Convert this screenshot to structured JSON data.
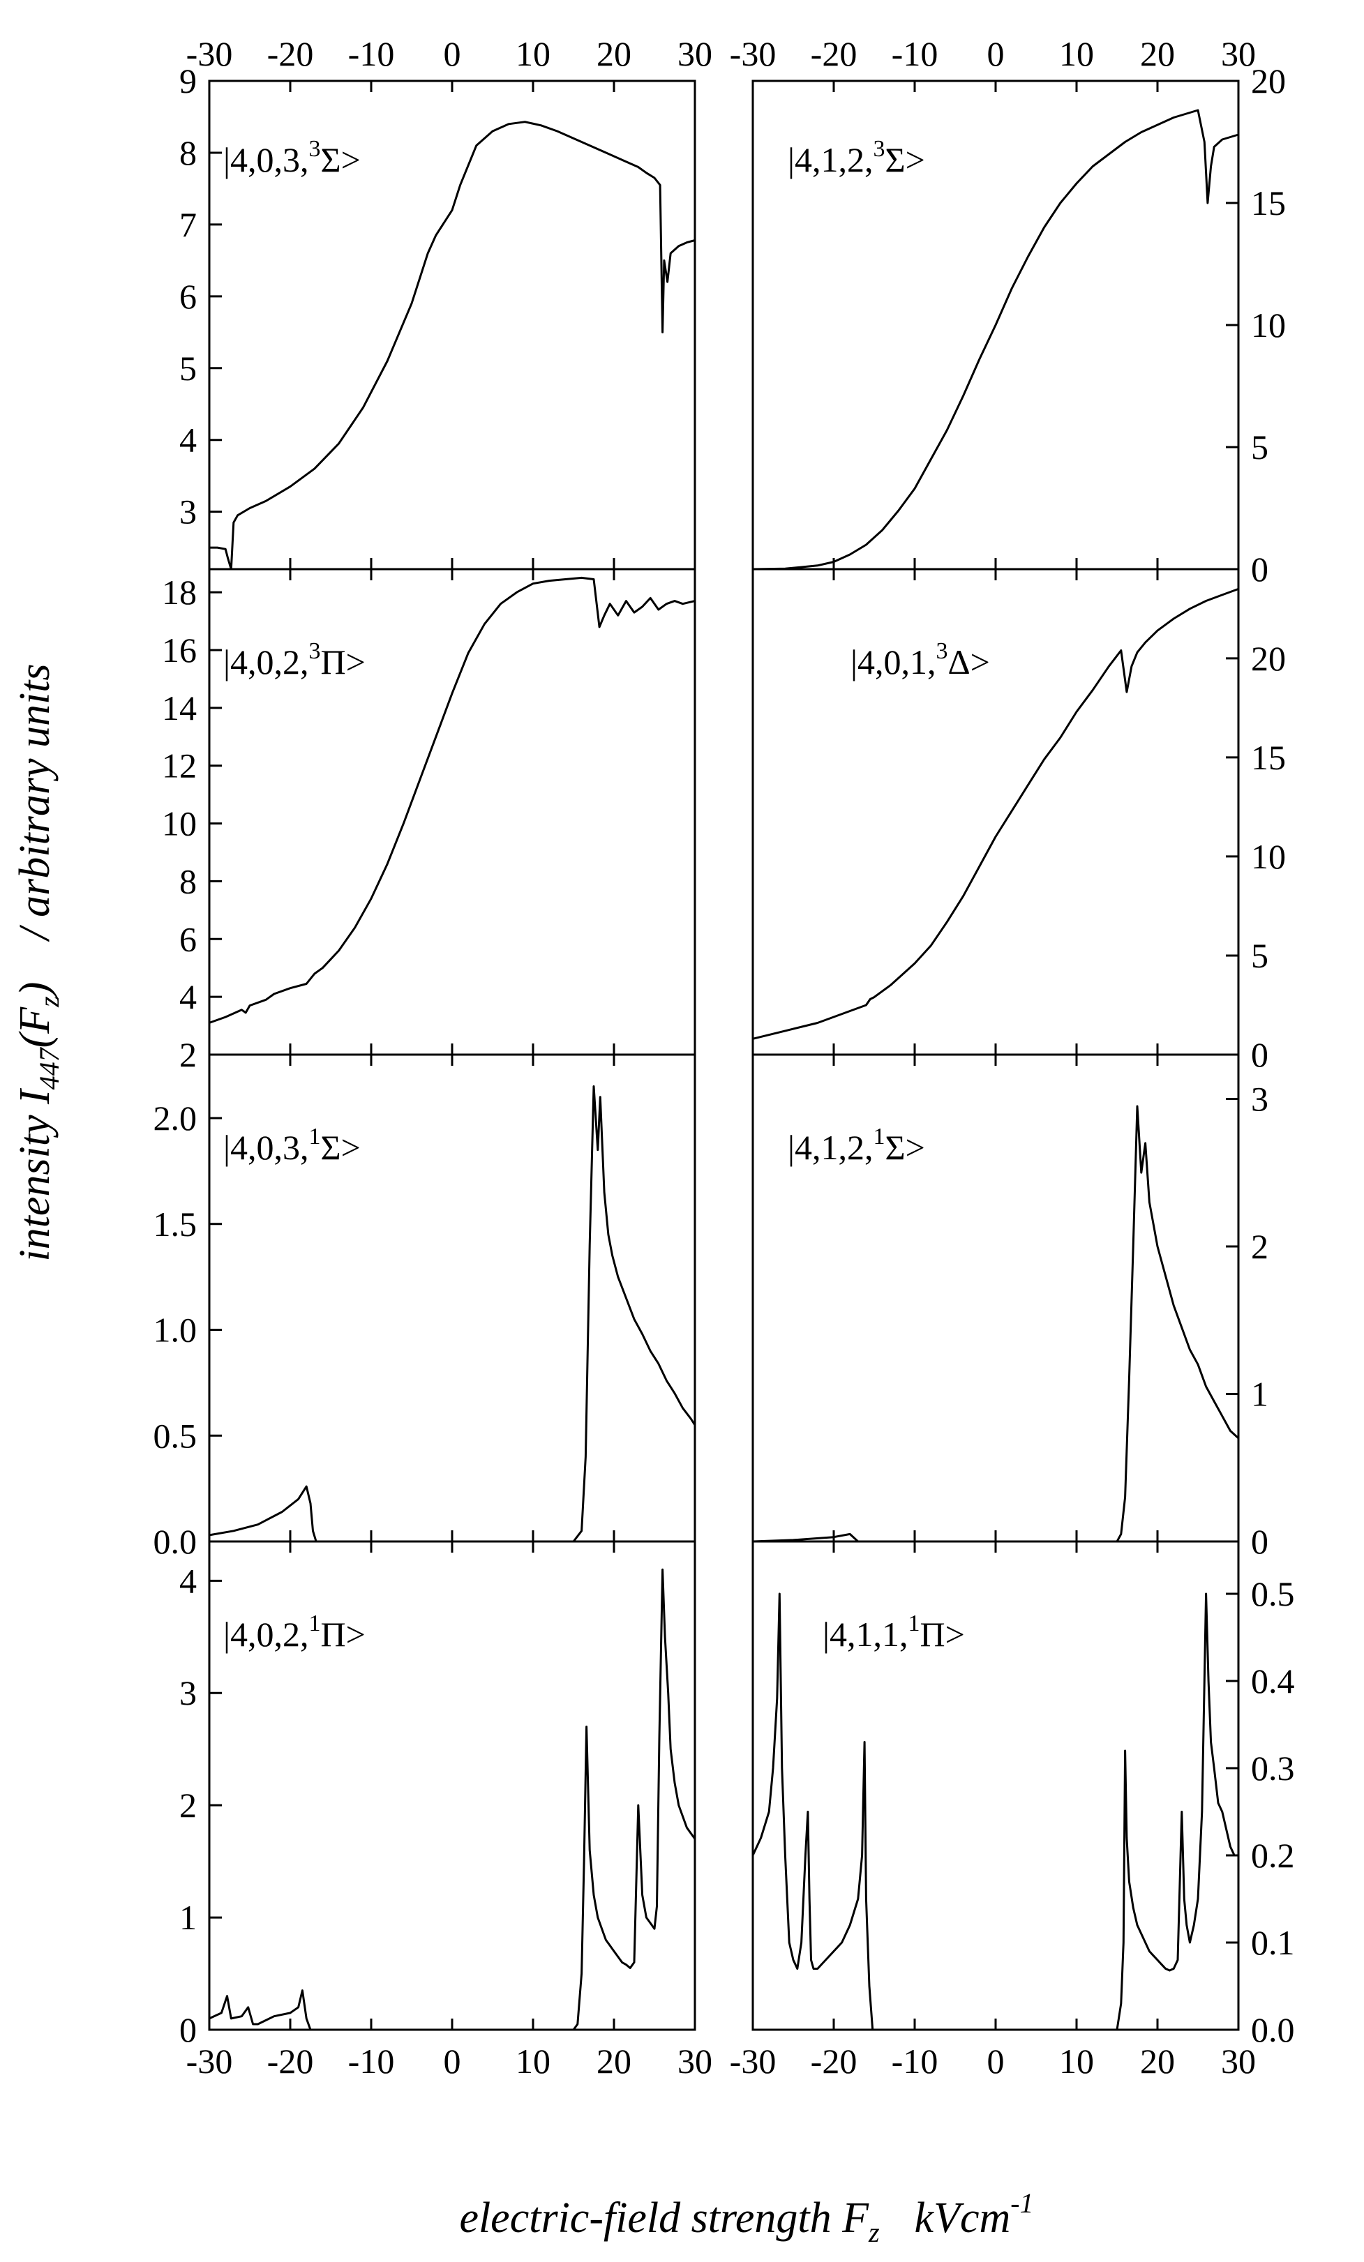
{
  "chart_data": [
    {
      "type": "line",
      "panel": "top-left",
      "label": {
        "prefix": "|4,0,3,",
        "sup": "3",
        "term": "Σ>"
      },
      "xlim": [
        -30,
        30
      ],
      "ylim": [
        2.2,
        9
      ],
      "yticks": [
        "3",
        "4",
        "5",
        "6",
        "7",
        "8",
        "9"
      ],
      "ytick_values": [
        3,
        4,
        5,
        6,
        7,
        8,
        9
      ],
      "series": [
        {
          "name": "|4,0,3,3Σ>",
          "x": [
            -30,
            -29,
            -28,
            -27.7,
            -27.3,
            -27,
            -26.5,
            -25,
            -23,
            -20,
            -17,
            -14,
            -11,
            -8,
            -5,
            -3,
            -2,
            0,
            1,
            3,
            5,
            7,
            9,
            11,
            13,
            15,
            17,
            19,
            21,
            23,
            24,
            25,
            25.7,
            26,
            26.2,
            26.6,
            27,
            28,
            29,
            30
          ],
          "y": [
            2.5,
            2.5,
            2.48,
            2.35,
            2.2,
            2.85,
            2.95,
            3.05,
            3.15,
            3.35,
            3.6,
            3.95,
            4.45,
            5.1,
            5.9,
            6.6,
            6.85,
            7.2,
            7.55,
            8.1,
            8.3,
            8.4,
            8.43,
            8.38,
            8.3,
            8.2,
            8.1,
            8.0,
            7.9,
            7.8,
            7.72,
            7.65,
            7.55,
            5.5,
            6.5,
            6.2,
            6.6,
            6.7,
            6.75,
            6.78
          ]
        }
      ]
    },
    {
      "type": "line",
      "panel": "top-right",
      "label": {
        "prefix": "|4,1,2,",
        "sup": "3",
        "term": "Σ>"
      },
      "xlim": [
        -30,
        30
      ],
      "ylim": [
        0,
        20
      ],
      "yticks": [
        "0",
        "5",
        "10",
        "15",
        "20"
      ],
      "ytick_values": [
        0,
        5,
        10,
        15,
        20
      ],
      "series": [
        {
          "name": "|4,1,2,3Σ>",
          "x": [
            -30,
            -26,
            -22,
            -20,
            -18,
            -16,
            -14,
            -12,
            -10,
            -8,
            -6,
            -4,
            -2,
            0,
            2,
            4,
            6,
            8,
            10,
            12,
            14,
            16,
            18,
            20,
            22,
            24,
            25,
            25.8,
            26.2,
            26.6,
            27,
            28,
            29,
            30
          ],
          "y": [
            0,
            0.02,
            0.15,
            0.3,
            0.6,
            1.0,
            1.6,
            2.4,
            3.3,
            4.5,
            5.7,
            7.1,
            8.6,
            10.0,
            11.5,
            12.8,
            14.0,
            15.0,
            15.8,
            16.5,
            17.0,
            17.5,
            17.9,
            18.2,
            18.5,
            18.7,
            18.8,
            17.5,
            15.0,
            16.5,
            17.3,
            17.6,
            17.7,
            17.8
          ]
        }
      ]
    },
    {
      "type": "line",
      "panel": "second-left",
      "label": {
        "prefix": "|4,0,2,",
        "sup": "3",
        "term": "Π>"
      },
      "xlim": [
        -30,
        30
      ],
      "ylim": [
        2,
        18.8
      ],
      "yticks": [
        "2",
        "4",
        "6",
        "8",
        "10",
        "12",
        "14",
        "16",
        "18"
      ],
      "ytick_values": [
        2,
        4,
        6,
        8,
        10,
        12,
        14,
        16,
        18
      ],
      "series": [
        {
          "name": "|4,0,2,3Π>",
          "x": [
            -30,
            -28,
            -26,
            -25.5,
            -25,
            -23,
            -22,
            -20,
            -18,
            -17,
            -16,
            -14,
            -12,
            -10,
            -8,
            -6,
            -4,
            -2,
            0,
            2,
            4,
            6,
            8,
            10,
            12,
            14,
            16,
            17.5,
            18.2,
            18.8,
            19.5,
            20.5,
            21.5,
            22.5,
            23.5,
            24.5,
            25.5,
            26.5,
            27.5,
            28.5,
            30
          ],
          "y": [
            3.1,
            3.3,
            3.55,
            3.45,
            3.7,
            3.9,
            4.1,
            4.3,
            4.45,
            4.8,
            5.0,
            5.6,
            6.4,
            7.4,
            8.6,
            10.0,
            11.5,
            13.0,
            14.5,
            15.9,
            16.9,
            17.6,
            18.0,
            18.3,
            18.4,
            18.45,
            18.5,
            18.45,
            16.8,
            17.2,
            17.6,
            17.2,
            17.7,
            17.3,
            17.5,
            17.8,
            17.4,
            17.6,
            17.7,
            17.6,
            17.7
          ]
        }
      ]
    },
    {
      "type": "line",
      "panel": "second-right",
      "label": {
        "prefix": "|4,0,1,",
        "sup": "3",
        "term": "Δ>"
      },
      "xlim": [
        -30,
        30
      ],
      "ylim": [
        0,
        24.5
      ],
      "yticks": [
        "0",
        "5",
        "10",
        "15",
        "20"
      ],
      "ytick_values": [
        0,
        5,
        10,
        15,
        20
      ],
      "series": [
        {
          "name": "|4,0,1,3Δ>",
          "x": [
            -30,
            -26,
            -22,
            -18,
            -16,
            -15.5,
            -15,
            -13,
            -10,
            -8,
            -6,
            -4,
            -2,
            0,
            2,
            4,
            6,
            8,
            10,
            12,
            14,
            15.5,
            16.2,
            16.8,
            17.5,
            18.5,
            20,
            22,
            24,
            26,
            28,
            30
          ],
          "y": [
            0.8,
            1.2,
            1.6,
            2.2,
            2.5,
            2.8,
            2.9,
            3.5,
            4.6,
            5.5,
            6.7,
            8.0,
            9.5,
            11.0,
            12.3,
            13.6,
            14.9,
            16.0,
            17.3,
            18.4,
            19.6,
            20.4,
            18.3,
            19.6,
            20.3,
            20.8,
            21.4,
            22.0,
            22.5,
            22.9,
            23.2,
            23.5
          ]
        }
      ]
    },
    {
      "type": "line",
      "panel": "third-left",
      "label": {
        "prefix": "|4,0,3,",
        "sup": "1",
        "term": "Σ>"
      },
      "xlim": [
        -30,
        30
      ],
      "ylim": [
        0,
        2.3
      ],
      "yticks": [
        "0.0",
        "0.5",
        "1.0",
        "1.5",
        "2.0"
      ],
      "ytick_values": [
        0,
        0.5,
        1.0,
        1.5,
        2.0
      ],
      "series": [
        {
          "name": "|4,0,3,1Σ>",
          "x": [
            -30,
            -27,
            -24,
            -21,
            -19,
            -18,
            -17.5,
            -17.2,
            -16.8,
            -16,
            0,
            14,
            15,
            16,
            16.5,
            17,
            17.5,
            18,
            18.3,
            18.8,
            19.3,
            19.8,
            20.5,
            21.5,
            22.5,
            23.5,
            24.5,
            25.5,
            26.5,
            27.5,
            28.5,
            29.5,
            30
          ],
          "y": [
            0.03,
            0.05,
            0.08,
            0.14,
            0.2,
            0.26,
            0.18,
            0.05,
            0.0,
            0.0,
            0.0,
            0.0,
            0.0,
            0.05,
            0.4,
            1.4,
            2.15,
            1.85,
            2.1,
            1.65,
            1.45,
            1.35,
            1.25,
            1.15,
            1.05,
            0.98,
            0.9,
            0.84,
            0.76,
            0.7,
            0.63,
            0.58,
            0.55
          ]
        }
      ]
    },
    {
      "type": "line",
      "panel": "third-right",
      "label": {
        "prefix": "|4,1,2,",
        "sup": "1",
        "term": "Σ>"
      },
      "xlim": [
        -30,
        30
      ],
      "ylim": [
        0,
        3.3
      ],
      "yticks": [
        "0",
        "1",
        "2",
        "3"
      ],
      "ytick_values": [
        0,
        1,
        2,
        3
      ],
      "series": [
        {
          "name": "|4,1,2,1Σ>",
          "x": [
            -30,
            -25,
            -20,
            -18,
            -17,
            -16,
            0,
            14,
            15,
            15.5,
            16,
            16.5,
            17,
            17.5,
            18,
            18.5,
            19,
            20,
            21,
            22,
            23,
            24,
            25,
            26,
            27,
            28,
            29,
            30
          ],
          "y": [
            0.0,
            0.01,
            0.03,
            0.05,
            0.0,
            0.0,
            0.0,
            0.0,
            0.0,
            0.05,
            0.3,
            1.1,
            2.0,
            2.95,
            2.5,
            2.7,
            2.3,
            2.0,
            1.8,
            1.6,
            1.45,
            1.3,
            1.2,
            1.05,
            0.95,
            0.85,
            0.75,
            0.7
          ]
        }
      ]
    },
    {
      "type": "line",
      "panel": "bottom-left",
      "label": {
        "prefix": "|4,0,2,",
        "sup": "1",
        "term": "Π>"
      },
      "xlim": [
        -30,
        30
      ],
      "ylim": [
        0,
        4.35
      ],
      "yticks": [
        "0",
        "1",
        "2",
        "3",
        "4"
      ],
      "ytick_values": [
        0,
        1,
        2,
        3,
        4
      ],
      "series": [
        {
          "name": "|4,0,2,1Π>",
          "x": [
            -30,
            -28.5,
            -27.8,
            -27.3,
            -26,
            -25.2,
            -24.6,
            -24,
            -22,
            -20,
            -19,
            -18.5,
            -18,
            -17.5,
            -17,
            0,
            14,
            15,
            15.5,
            16,
            16.3,
            16.6,
            17,
            17.5,
            18,
            18.5,
            19,
            19.5,
            20,
            20.5,
            21,
            21.5,
            22,
            22.5,
            23,
            23.5,
            24,
            24.5,
            25,
            25.3,
            25.6,
            26,
            26.3,
            26.7,
            27,
            27.5,
            28,
            28.5,
            29,
            29.5,
            30
          ],
          "y": [
            0.1,
            0.15,
            0.3,
            0.1,
            0.12,
            0.2,
            0.05,
            0.05,
            0.12,
            0.15,
            0.2,
            0.35,
            0.1,
            0.0,
            0.0,
            0.0,
            0.0,
            0.0,
            0.05,
            0.5,
            1.5,
            2.7,
            1.6,
            1.2,
            1.0,
            0.9,
            0.8,
            0.75,
            0.7,
            0.65,
            0.6,
            0.58,
            0.55,
            0.6,
            2.0,
            1.2,
            1.0,
            0.95,
            0.9,
            1.1,
            2.6,
            4.1,
            3.5,
            3.0,
            2.5,
            2.2,
            2.0,
            1.9,
            1.8,
            1.75,
            1.7
          ]
        }
      ]
    },
    {
      "type": "line",
      "panel": "bottom-right",
      "label": {
        "prefix": "|4,1,1,",
        "sup": "1",
        "term": "Π>"
      },
      "xlim": [
        -30,
        30
      ],
      "ylim": [
        0,
        0.56
      ],
      "yticks": [
        "0.0",
        "0.1",
        "0.2",
        "0.3",
        "0.4",
        "0.5"
      ],
      "ytick_values": [
        0,
        0.1,
        0.2,
        0.3,
        0.4,
        0.5
      ],
      "series": [
        {
          "name": "|4,1,1,1Π>",
          "x": [
            -30,
            -29,
            -28,
            -27.5,
            -27,
            -26.7,
            -26.4,
            -26,
            -25.5,
            -25,
            -24.5,
            -24,
            -23.5,
            -23.2,
            -23,
            -22.8,
            -22.5,
            -22,
            -21,
            -20,
            -19,
            -18,
            -17,
            -16.5,
            -16.2,
            -16,
            -15.6,
            -15.2,
            -15,
            0,
            14,
            15,
            15.5,
            15.8,
            16,
            16.2,
            16.5,
            17,
            17.5,
            18,
            18.5,
            19,
            19.5,
            20,
            20.5,
            21,
            21.5,
            22,
            22.5,
            23,
            23.3,
            23.6,
            24,
            24.5,
            25,
            25.5,
            26,
            26.3,
            26.6,
            27,
            27.5,
            28,
            28.5,
            29,
            29.5,
            30
          ],
          "y": [
            0.2,
            0.22,
            0.25,
            0.3,
            0.38,
            0.5,
            0.3,
            0.2,
            0.1,
            0.08,
            0.07,
            0.1,
            0.2,
            0.25,
            0.15,
            0.08,
            0.07,
            0.07,
            0.08,
            0.09,
            0.1,
            0.12,
            0.15,
            0.2,
            0.33,
            0.15,
            0.05,
            0.0,
            0.0,
            0.0,
            0.0,
            0.0,
            0.03,
            0.1,
            0.32,
            0.22,
            0.17,
            0.14,
            0.12,
            0.11,
            0.1,
            0.09,
            0.085,
            0.08,
            0.075,
            0.07,
            0.068,
            0.07,
            0.08,
            0.25,
            0.15,
            0.12,
            0.1,
            0.12,
            0.15,
            0.25,
            0.5,
            0.4,
            0.33,
            0.3,
            0.26,
            0.25,
            0.23,
            0.21,
            0.2,
            0.2
          ]
        }
      ]
    }
  ],
  "axes": {
    "xticks": [
      "-30",
      "-20",
      "-10",
      "0",
      "10",
      "20",
      "30"
    ],
    "xtick_values": [
      -30,
      -20,
      -10,
      0,
      10,
      20,
      30
    ]
  },
  "labels": {
    "x_axis": {
      "text": "electric-field strength F",
      "sub": "z",
      "units": "kVcm",
      "units_sup": "-1"
    },
    "y_axis": {
      "text": "intensity I",
      "sub": "447",
      "paren_open": "(F",
      "paren_sub": "z",
      "paren_close": ")",
      "tail": "/ arbitrary units"
    }
  }
}
